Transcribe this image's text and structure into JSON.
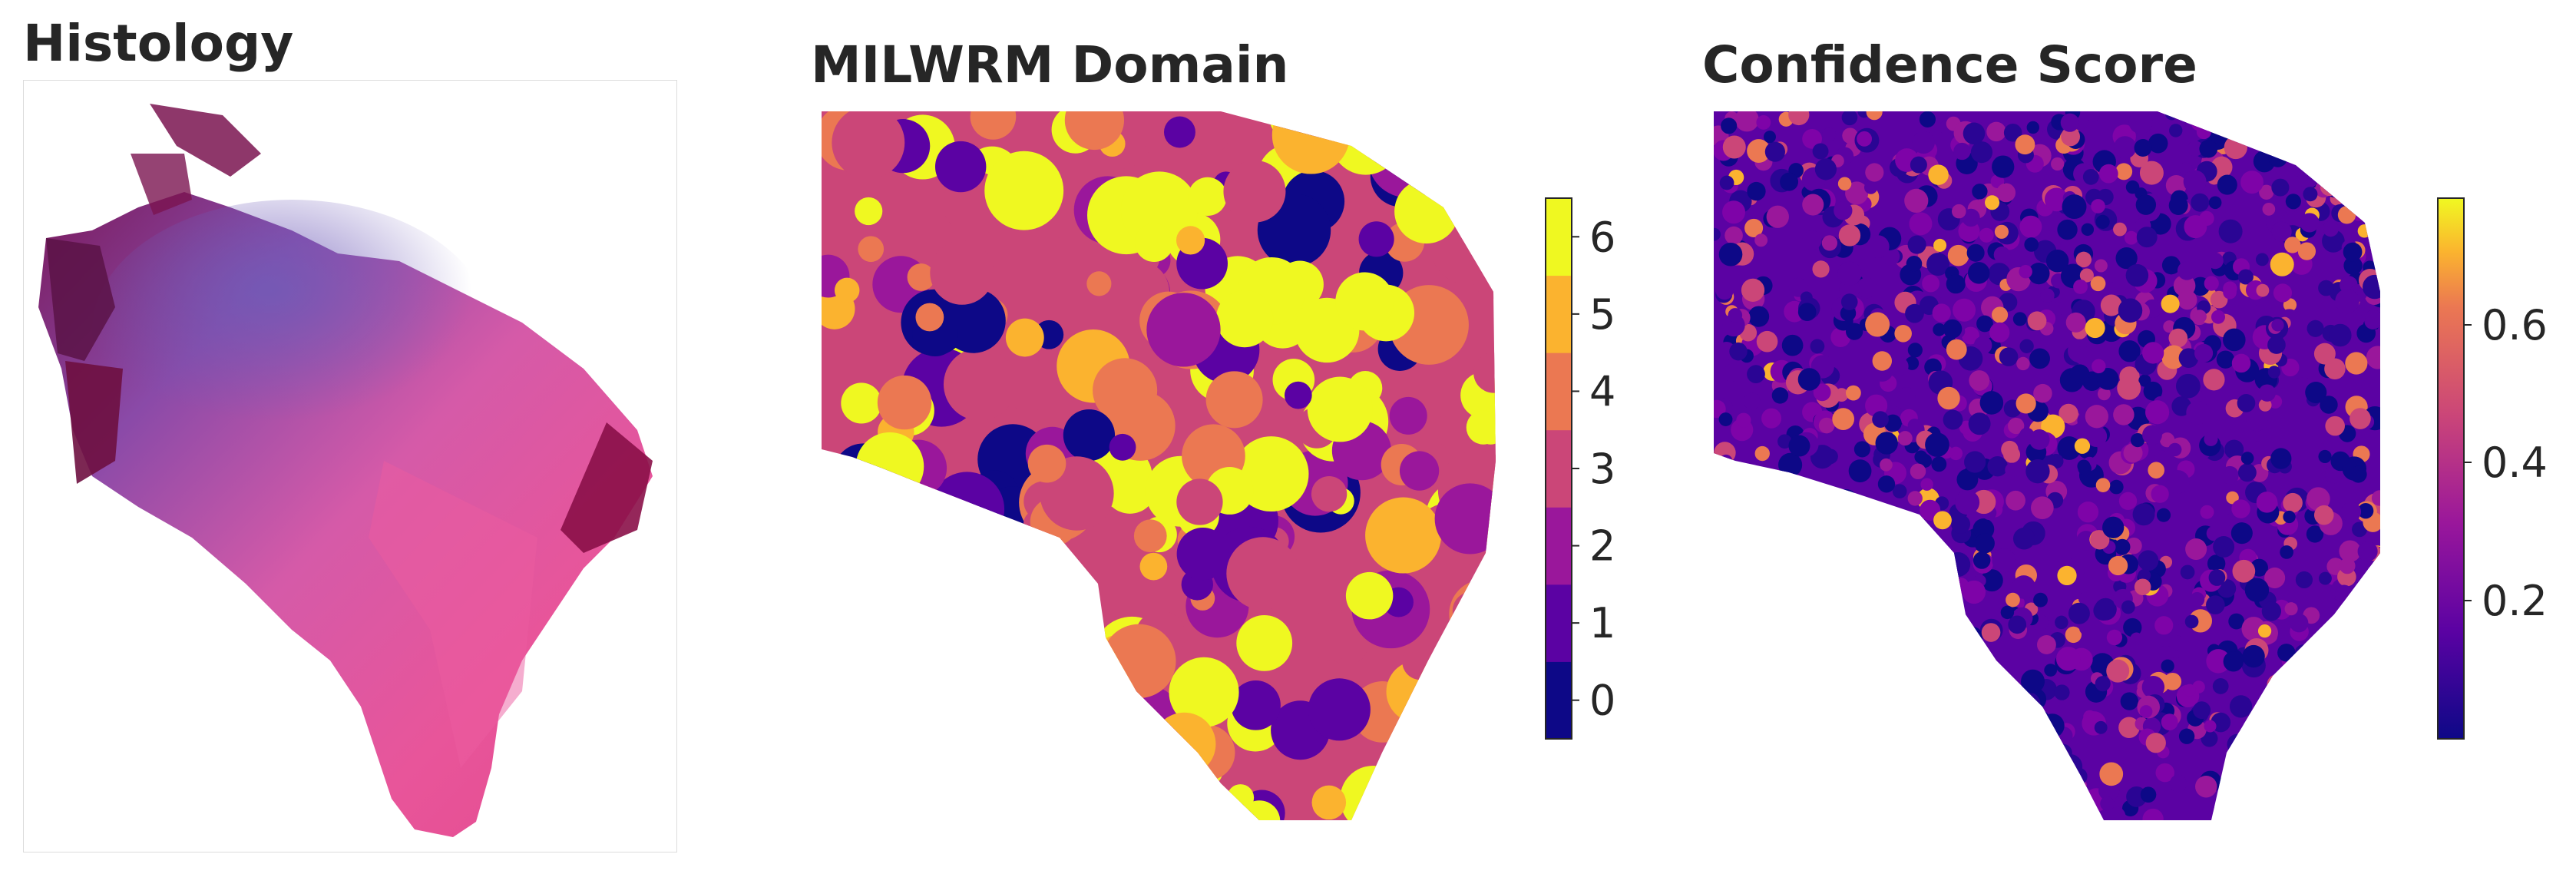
{
  "panels": {
    "histology": {
      "title": "Histology"
    },
    "domain": {
      "title": "MILWRM Domain",
      "colorbar_ticks": [
        "0",
        "1",
        "2",
        "3",
        "4",
        "5",
        "6"
      ],
      "colors": [
        "#0d0887",
        "#5b02a3",
        "#9a179b",
        "#cb4678",
        "#eb7852",
        "#fbb32f",
        "#eff821"
      ]
    },
    "confidence": {
      "title": "Confidence Score",
      "colorbar_ticks": [
        "0.2",
        "0.4",
        "0.6"
      ],
      "colormap": "plasma"
    }
  }
}
